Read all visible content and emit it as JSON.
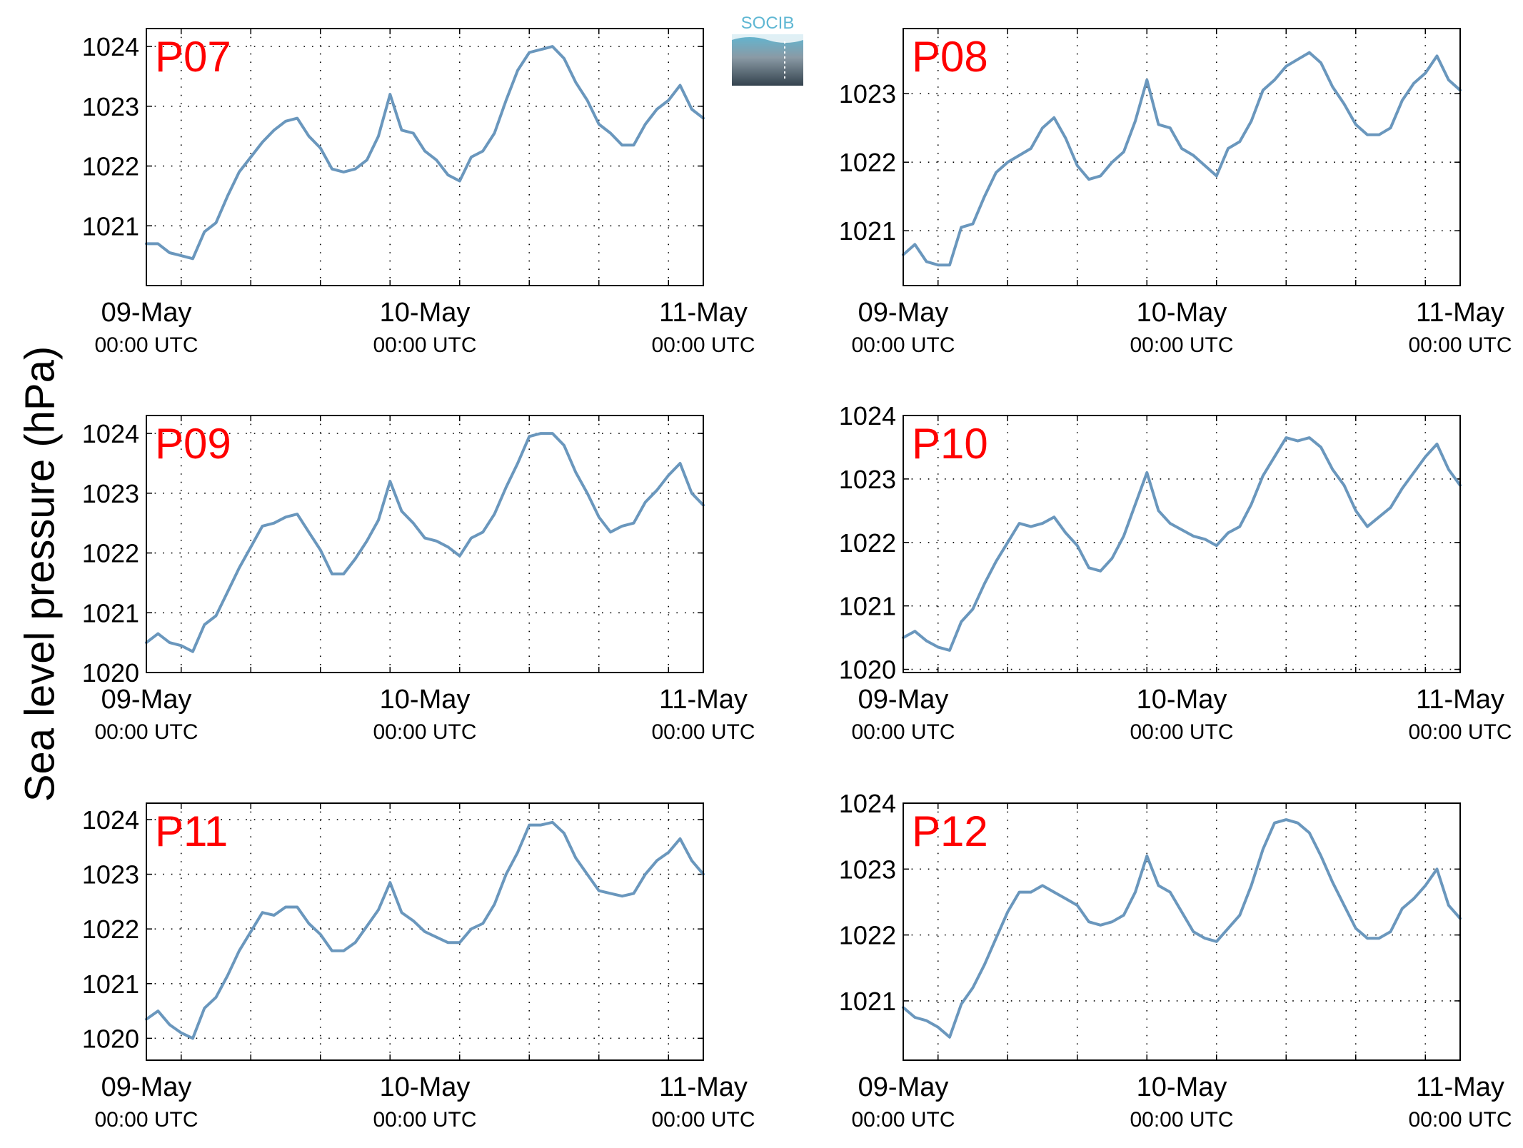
{
  "figure": {
    "ylabel": "Sea level pressure (hPa)",
    "logo_text": "SOCIB"
  },
  "colors": {
    "line": "#6a97bd",
    "panel_label": "#ff0000",
    "grid": "#000000",
    "logo_text": "#5fb7d3",
    "logo_top": "#5fb7d3",
    "logo_bottom": "#3a4a55"
  },
  "chart_data": [
    {
      "type": "line",
      "label": "P07",
      "x_ticks": [
        {
          "date": "09-May",
          "time": "00:00 UTC"
        },
        {
          "date": "10-May",
          "time": "00:00 UTC"
        },
        {
          "date": "11-May",
          "time": "00:00 UTC"
        }
      ],
      "xlim_hours": [
        0,
        48
      ],
      "ylim": [
        1020.0,
        1024.3
      ],
      "yticks": [
        1021,
        1022,
        1023,
        1024
      ],
      "grid": true,
      "series": [
        {
          "x_hours": [
            0,
            1,
            2,
            3,
            4,
            5,
            6,
            7,
            8,
            9,
            10,
            11,
            12,
            13,
            14,
            15,
            16,
            17,
            18,
            19,
            20,
            21,
            22,
            23,
            24,
            25,
            26,
            27,
            28,
            29,
            30,
            31,
            32,
            33,
            34,
            35,
            36,
            37,
            38,
            39,
            40,
            41,
            42,
            43,
            44,
            45,
            46,
            47,
            48
          ],
          "values": [
            1020.7,
            1020.7,
            1020.55,
            1020.5,
            1020.45,
            1020.9,
            1021.05,
            1021.5,
            1021.9,
            1022.15,
            1022.4,
            1022.6,
            1022.75,
            1022.8,
            1022.5,
            1022.3,
            1021.95,
            1021.9,
            1021.95,
            1022.1,
            1022.5,
            1023.2,
            1022.6,
            1022.55,
            1022.25,
            1022.1,
            1021.85,
            1021.75,
            1022.15,
            1022.25,
            1022.55,
            1023.1,
            1023.6,
            1023.9,
            1023.95,
            1024.0,
            1023.8,
            1023.4,
            1023.1,
            1022.7,
            1022.55,
            1022.35,
            1022.35,
            1022.7,
            1022.95,
            1023.1,
            1023.35,
            1022.95,
            1022.8
          ]
        }
      ]
    },
    {
      "type": "line",
      "label": "P08",
      "x_ticks": [
        {
          "date": "09-May",
          "time": "00:00 UTC"
        },
        {
          "date": "10-May",
          "time": "00:00 UTC"
        },
        {
          "date": "11-May",
          "time": "00:00 UTC"
        }
      ],
      "xlim_hours": [
        0,
        48
      ],
      "ylim": [
        1020.2,
        1023.95
      ],
      "yticks": [
        1021,
        1022,
        1023
      ],
      "grid": true,
      "series": [
        {
          "x_hours": [
            0,
            1,
            2,
            3,
            4,
            5,
            6,
            7,
            8,
            9,
            10,
            11,
            12,
            13,
            14,
            15,
            16,
            17,
            18,
            19,
            20,
            21,
            22,
            23,
            24,
            25,
            26,
            27,
            28,
            29,
            30,
            31,
            32,
            33,
            34,
            35,
            36,
            37,
            38,
            39,
            40,
            41,
            42,
            43,
            44,
            45,
            46,
            47,
            48
          ],
          "values": [
            1020.65,
            1020.8,
            1020.55,
            1020.5,
            1020.5,
            1021.05,
            1021.1,
            1021.5,
            1021.85,
            1022.0,
            1022.1,
            1022.2,
            1022.5,
            1022.65,
            1022.35,
            1021.95,
            1021.75,
            1021.8,
            1022.0,
            1022.15,
            1022.6,
            1023.2,
            1022.55,
            1022.5,
            1022.2,
            1022.1,
            1021.95,
            1021.8,
            1022.2,
            1022.3,
            1022.6,
            1023.05,
            1023.2,
            1023.4,
            1023.5,
            1023.6,
            1023.45,
            1023.1,
            1022.85,
            1022.55,
            1022.4,
            1022.4,
            1022.5,
            1022.9,
            1023.15,
            1023.3,
            1023.55,
            1023.2,
            1023.05
          ]
        }
      ]
    },
    {
      "type": "line",
      "label": "P09",
      "x_ticks": [
        {
          "date": "09-May",
          "time": "00:00 UTC"
        },
        {
          "date": "10-May",
          "time": "00:00 UTC"
        },
        {
          "date": "11-May",
          "time": "00:00 UTC"
        }
      ],
      "xlim_hours": [
        0,
        48
      ],
      "ylim": [
        1020.0,
        1024.3
      ],
      "yticks": [
        1020,
        1021,
        1022,
        1023,
        1024
      ],
      "grid": true,
      "series": [
        {
          "x_hours": [
            0,
            1,
            2,
            3,
            4,
            5,
            6,
            7,
            8,
            9,
            10,
            11,
            12,
            13,
            14,
            15,
            16,
            17,
            18,
            19,
            20,
            21,
            22,
            23,
            24,
            25,
            26,
            27,
            28,
            29,
            30,
            31,
            32,
            33,
            34,
            35,
            36,
            37,
            38,
            39,
            40,
            41,
            42,
            43,
            44,
            45,
            46,
            47,
            48
          ],
          "values": [
            1020.5,
            1020.65,
            1020.5,
            1020.45,
            1020.35,
            1020.8,
            1020.95,
            1021.35,
            1021.75,
            1022.1,
            1022.45,
            1022.5,
            1022.6,
            1022.65,
            1022.35,
            1022.05,
            1021.65,
            1021.65,
            1021.9,
            1022.2,
            1022.55,
            1023.2,
            1022.7,
            1022.5,
            1022.25,
            1022.2,
            1022.1,
            1021.95,
            1022.25,
            1022.35,
            1022.65,
            1023.1,
            1023.5,
            1023.95,
            1024.0,
            1024.0,
            1023.8,
            1023.35,
            1023.0,
            1022.6,
            1022.35,
            1022.45,
            1022.5,
            1022.85,
            1023.05,
            1023.3,
            1023.5,
            1023.0,
            1022.8
          ]
        }
      ]
    },
    {
      "type": "line",
      "label": "P10",
      "x_ticks": [
        {
          "date": "09-May",
          "time": "00:00 UTC"
        },
        {
          "date": "10-May",
          "time": "00:00 UTC"
        },
        {
          "date": "11-May",
          "time": "00:00 UTC"
        }
      ],
      "xlim_hours": [
        0,
        48
      ],
      "ylim": [
        1019.95,
        1024.0
      ],
      "yticks": [
        1020,
        1021,
        1022,
        1023,
        1024
      ],
      "grid": true,
      "series": [
        {
          "x_hours": [
            0,
            1,
            2,
            3,
            4,
            5,
            6,
            7,
            8,
            9,
            10,
            11,
            12,
            13,
            14,
            15,
            16,
            17,
            18,
            19,
            20,
            21,
            22,
            23,
            24,
            25,
            26,
            27,
            28,
            29,
            30,
            31,
            32,
            33,
            34,
            35,
            36,
            37,
            38,
            39,
            40,
            41,
            42,
            43,
            44,
            45,
            46,
            47,
            48
          ],
          "values": [
            1020.5,
            1020.6,
            1020.45,
            1020.35,
            1020.3,
            1020.75,
            1020.95,
            1021.35,
            1021.7,
            1022.0,
            1022.3,
            1022.25,
            1022.3,
            1022.4,
            1022.15,
            1021.95,
            1021.6,
            1021.55,
            1021.75,
            1022.1,
            1022.6,
            1023.1,
            1022.5,
            1022.3,
            1022.2,
            1022.1,
            1022.05,
            1021.95,
            1022.15,
            1022.25,
            1022.6,
            1023.05,
            1023.35,
            1023.65,
            1023.6,
            1023.65,
            1023.5,
            1023.15,
            1022.9,
            1022.5,
            1022.25,
            1022.4,
            1022.55,
            1022.85,
            1023.1,
            1023.35,
            1023.55,
            1023.15,
            1022.9
          ]
        }
      ]
    },
    {
      "type": "line",
      "label": "P11",
      "x_ticks": [
        {
          "date": "09-May",
          "time": "00:00 UTC"
        },
        {
          "date": "10-May",
          "time": "00:00 UTC"
        },
        {
          "date": "11-May",
          "time": "00:00 UTC"
        }
      ],
      "xlim_hours": [
        0,
        48
      ],
      "ylim": [
        1019.6,
        1024.3
      ],
      "yticks": [
        1020,
        1021,
        1022,
        1023,
        1024
      ],
      "grid": true,
      "series": [
        {
          "x_hours": [
            0,
            1,
            2,
            3,
            4,
            5,
            6,
            7,
            8,
            9,
            10,
            11,
            12,
            13,
            14,
            15,
            16,
            17,
            18,
            19,
            20,
            21,
            22,
            23,
            24,
            25,
            26,
            27,
            28,
            29,
            30,
            31,
            32,
            33,
            34,
            35,
            36,
            37,
            38,
            39,
            40,
            41,
            42,
            43,
            44,
            45,
            46,
            47,
            48
          ],
          "values": [
            1020.35,
            1020.5,
            1020.25,
            1020.1,
            1020.0,
            1020.55,
            1020.75,
            1021.15,
            1021.6,
            1021.95,
            1022.3,
            1022.25,
            1022.4,
            1022.4,
            1022.1,
            1021.9,
            1021.6,
            1021.6,
            1021.75,
            1022.05,
            1022.35,
            1022.85,
            1022.3,
            1022.15,
            1021.95,
            1021.85,
            1021.75,
            1021.75,
            1022.0,
            1022.1,
            1022.45,
            1023.0,
            1023.4,
            1023.9,
            1023.9,
            1023.95,
            1023.75,
            1023.3,
            1023.0,
            1022.7,
            1022.65,
            1022.6,
            1022.65,
            1023.0,
            1023.25,
            1023.4,
            1023.65,
            1023.25,
            1023.0
          ]
        }
      ]
    },
    {
      "type": "line",
      "label": "P12",
      "x_ticks": [
        {
          "date": "09-May",
          "time": "00:00 UTC"
        },
        {
          "date": "10-May",
          "time": "00:00 UTC"
        },
        {
          "date": "11-May",
          "time": "00:00 UTC"
        }
      ],
      "xlim_hours": [
        0,
        48
      ],
      "ylim": [
        1020.1,
        1024.0
      ],
      "yticks": [
        1021,
        1022,
        1023,
        1024
      ],
      "grid": true,
      "series": [
        {
          "x_hours": [
            0,
            1,
            2,
            3,
            4,
            5,
            6,
            7,
            8,
            9,
            10,
            11,
            12,
            13,
            14,
            15,
            16,
            17,
            18,
            19,
            20,
            21,
            22,
            23,
            24,
            25,
            26,
            27,
            28,
            29,
            30,
            31,
            32,
            33,
            34,
            35,
            36,
            37,
            38,
            39,
            40,
            41,
            42,
            43,
            44,
            45,
            46,
            47,
            48
          ],
          "values": [
            1020.9,
            1020.75,
            1020.7,
            1020.6,
            1020.45,
            1020.95,
            1021.2,
            1021.55,
            1021.95,
            1022.35,
            1022.65,
            1022.65,
            1022.75,
            1022.65,
            1022.55,
            1022.45,
            1022.2,
            1022.15,
            1022.2,
            1022.3,
            1022.65,
            1023.2,
            1022.75,
            1022.65,
            1022.35,
            1022.05,
            1021.95,
            1021.9,
            1022.1,
            1022.3,
            1022.75,
            1023.3,
            1023.7,
            1023.75,
            1023.7,
            1023.55,
            1023.2,
            1022.8,
            1022.45,
            1022.1,
            1021.95,
            1021.95,
            1022.05,
            1022.4,
            1022.55,
            1022.75,
            1023.0,
            1022.45,
            1022.25
          ]
        }
      ]
    }
  ]
}
